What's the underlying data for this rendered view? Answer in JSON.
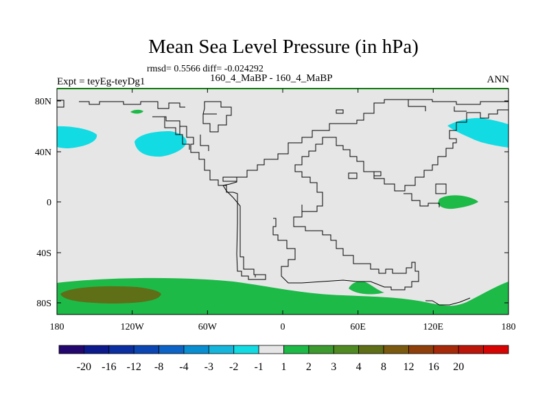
{
  "title": "Mean Sea Level Pressure (in hPa)",
  "stats": "rmsd= 0.5566  diff= -0.024292",
  "experiment": "Expt = teyEg-teyDg1",
  "period": "160_4_MaBP - 160_4_MaBP",
  "season": "ANN",
  "map": {
    "background_color": "#e6e6e6",
    "lat_ticks": [
      "80N",
      "40N",
      "0",
      "40S",
      "80S"
    ],
    "lon_ticks": [
      "180",
      "120W",
      "60W",
      "0",
      "60E",
      "120E",
      "180"
    ]
  },
  "colorbar": {
    "colors": [
      "#24076e",
      "#0c1a8c",
      "#0b2fa0",
      "#0b46b3",
      "#0e64c6",
      "#0a8ed2",
      "#16b6dc",
      "#13dbe3",
      "#e6e6e6",
      "#1dba48",
      "#3d9a2e",
      "#4f8b22",
      "#5e6f17",
      "#7b5a10",
      "#8f3f0b",
      "#a6290a",
      "#bc150a",
      "#d70404"
    ],
    "labels": [
      "-20",
      "-16",
      "-12",
      "-8",
      "-4",
      "-3",
      "-2",
      "-1",
      "1",
      "2",
      "3",
      "4",
      "8",
      "12",
      "16",
      "20"
    ]
  },
  "anomaly_colors": {
    "cyan": "#13dbe3",
    "green": "#1dba48",
    "dark_green": "#5e6f17"
  }
}
